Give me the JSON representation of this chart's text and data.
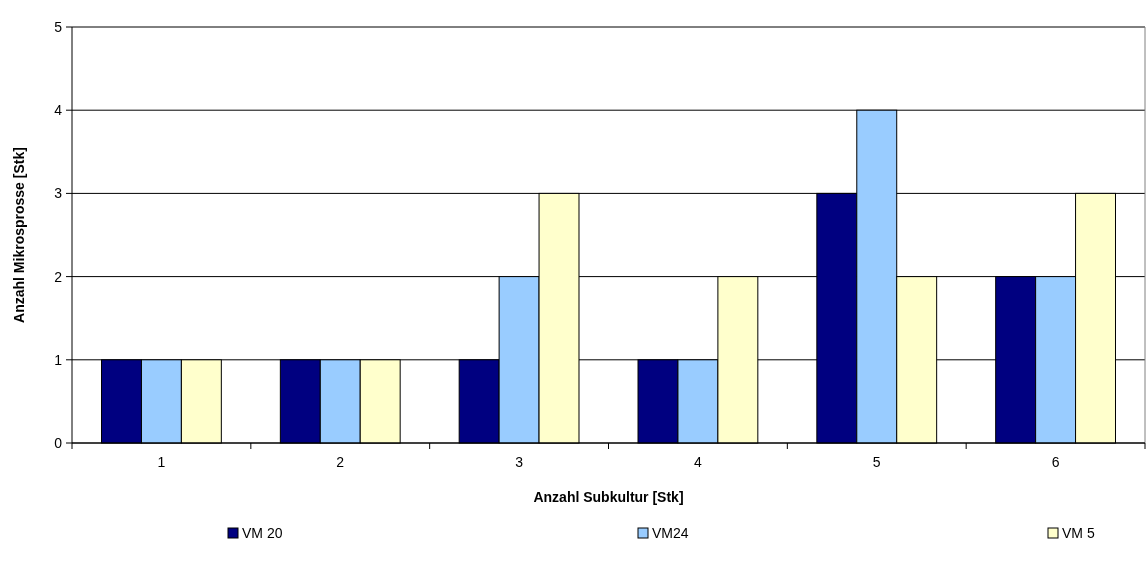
{
  "chart_data": {
    "type": "bar",
    "xlabel": "Anzahl Subkultur [Stk]",
    "ylabel": "Anzahl Mikrosprosse [Stk]",
    "categories": [
      "1",
      "2",
      "3",
      "4",
      "5",
      "6"
    ],
    "series": [
      {
        "name": "VM 20",
        "color": "#000080",
        "values": [
          1,
          1,
          1,
          1,
          3,
          2
        ]
      },
      {
        "name": "VM24",
        "color": "#99ccff",
        "values": [
          1,
          1,
          2,
          1,
          4,
          2
        ]
      },
      {
        "name": "VM 5",
        "color": "#ffffcc",
        "values": [
          1,
          1,
          3,
          2,
          2,
          3
        ]
      }
    ],
    "ylim": [
      0,
      5
    ],
    "yticks": [
      0,
      1,
      2,
      3,
      4,
      5
    ],
    "grid": "y",
    "legend": "bottom"
  }
}
